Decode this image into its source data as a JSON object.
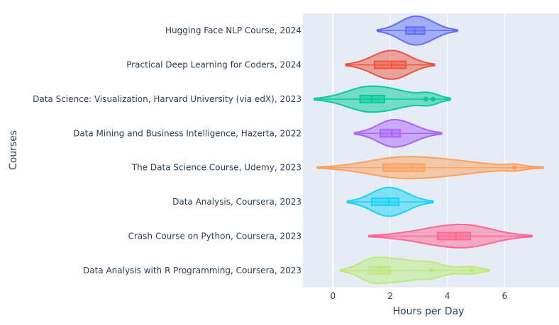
{
  "chart_data": {
    "type": "violin",
    "orientation": "horizontal",
    "xlabel": "Hours per Day",
    "ylabel": "Courses",
    "xlim": [
      -1.05,
      7.9
    ],
    "xticks": [
      0,
      2,
      4,
      6
    ],
    "grid": true,
    "legend": "none",
    "categories": [
      "Data Analysis with R Programming, Coursera, 2023",
      "Crash Course on Python, Coursera, 2023",
      "Data Analysis, Coursera, 2023",
      "The Data Science Course, Udemy, 2023",
      "Data Mining and Business Intelligence, Hazerta, 2022",
      "Data Science: Visualization, Harvard University (via edX), 2023",
      "Practical Deep Learning for Coders, 2024",
      "Hugging Face NLP Course, 2024"
    ],
    "series": [
      {
        "color": "#bcea7a",
        "min": 0.25,
        "max": 5.45,
        "q1": 1.25,
        "median": 1.65,
        "q3": 2.0,
        "mode": 1.5,
        "half_height": 0.38,
        "outliers": [
          3.45,
          4.85
        ]
      },
      {
        "color": "#ff6692",
        "min": 1.25,
        "max": 6.95,
        "q1": 3.65,
        "median": 4.3,
        "q3": 4.8,
        "mode": 4.5,
        "half_height": 0.34,
        "outliers": []
      },
      {
        "color": "#19d3f3",
        "min": 0.5,
        "max": 3.5,
        "q1": 1.35,
        "median": 1.95,
        "q3": 2.3,
        "mode": 1.95,
        "half_height": 0.42,
        "outliers": []
      },
      {
        "color": "#ffa15a",
        "min": -0.55,
        "max": 7.35,
        "q1": 1.75,
        "median": 2.75,
        "q3": 3.2,
        "mode": 2.6,
        "half_height": 0.32,
        "outliers": [
          6.35
        ]
      },
      {
        "color": "#ab63fa",
        "min": 0.75,
        "max": 3.8,
        "q1": 1.65,
        "median": 2.05,
        "q3": 2.35,
        "mode": 2.15,
        "half_height": 0.4,
        "outliers": []
      },
      {
        "color": "#00cc96",
        "min": -0.65,
        "max": 4.1,
        "q1": 0.95,
        "median": 1.35,
        "q3": 1.8,
        "mode": 1.35,
        "half_height": 0.38,
        "outliers": [
          3.25,
          3.5
        ]
      },
      {
        "color": "#ef553b",
        "min": 0.45,
        "max": 3.55,
        "q1": 1.45,
        "median": 2.05,
        "q3": 2.55,
        "mode": 2.05,
        "half_height": 0.42,
        "outliers": []
      },
      {
        "color": "#636efa",
        "min": 1.55,
        "max": 4.35,
        "q1": 2.55,
        "median": 2.85,
        "q3": 3.2,
        "mode": 2.9,
        "half_height": 0.42,
        "outliers": []
      }
    ]
  }
}
